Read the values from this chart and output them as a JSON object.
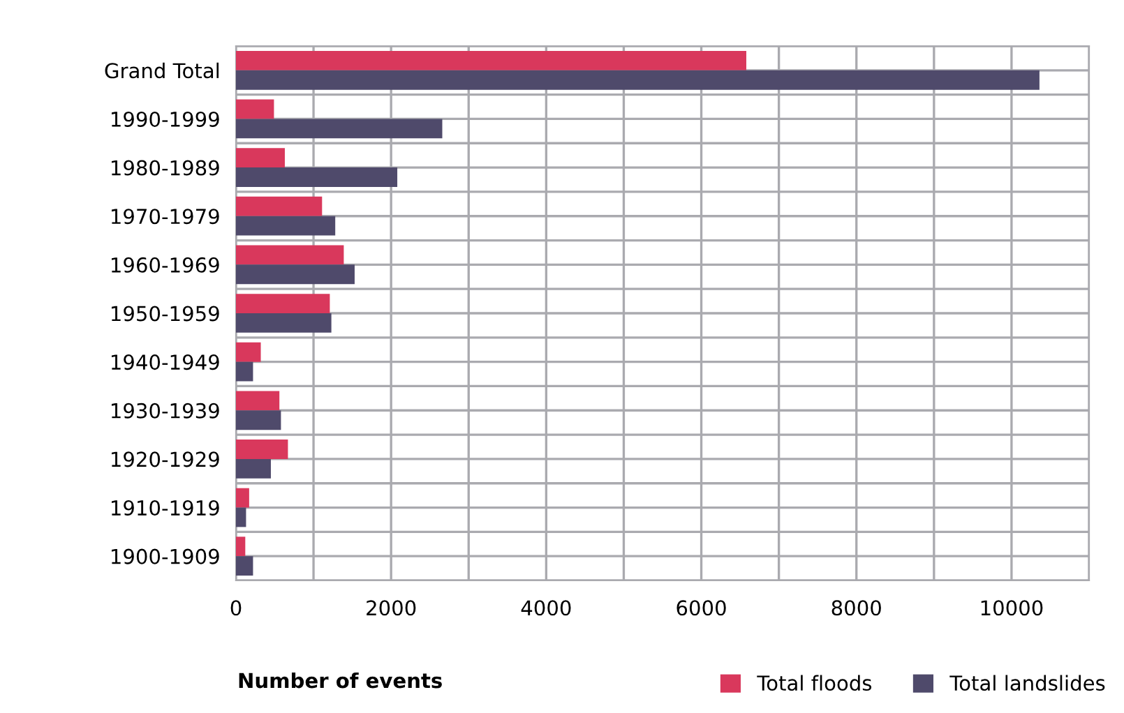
{
  "chart_data": {
    "type": "bar",
    "orientation": "horizontal",
    "xlabel": "Number of events",
    "categories": [
      "Grand Total",
      "1990-1999",
      "1980-1989",
      "1970-1979",
      "1960-1969",
      "1950-1959",
      "1940-1949",
      "1930-1939",
      "1920-1929",
      "1910-1919",
      "1900-1909"
    ],
    "series": [
      {
        "name": "Total floods",
        "color": "#d9385c",
        "values": [
          6580,
          490,
          630,
          1110,
          1390,
          1210,
          320,
          560,
          670,
          170,
          120
        ]
      },
      {
        "name": "Total landslides",
        "color": "#4f4a6b",
        "values": [
          10360,
          2660,
          2080,
          1280,
          1530,
          1230,
          220,
          580,
          450,
          130,
          220
        ]
      }
    ],
    "xlim": [
      0,
      11000
    ],
    "xticks": [
      0,
      2000,
      4000,
      6000,
      8000,
      10000
    ],
    "grid": true,
    "legend": "bottom right"
  }
}
